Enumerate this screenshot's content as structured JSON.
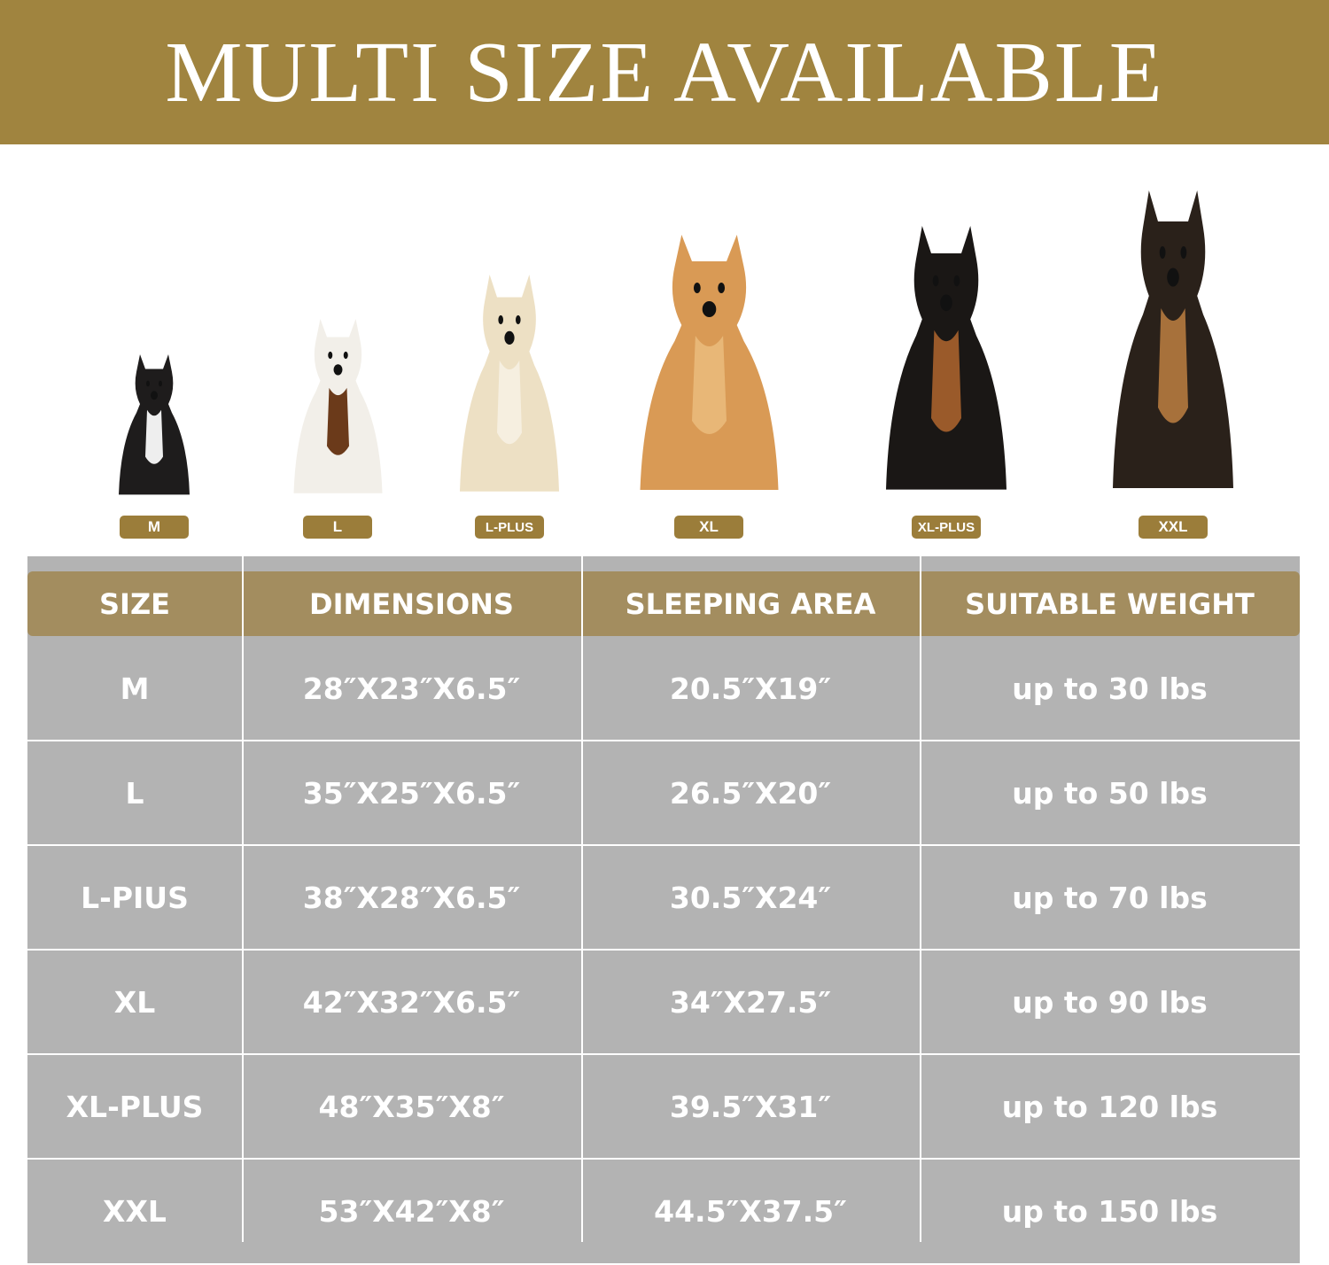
{
  "title": "MULTI SIZE AVAILABLE",
  "colors": {
    "banner": "#a0843f",
    "badge": "#9b7d3a",
    "header": "#a38d5f",
    "table_bg": "#b3b3b3"
  },
  "dogs": [
    {
      "label": "M",
      "breed_icon": "french-bulldog"
    },
    {
      "label": "L",
      "breed_icon": "beagle"
    },
    {
      "label": "L-PLUS",
      "breed_icon": "golden-retriever-cream"
    },
    {
      "label": "XL",
      "breed_icon": "golden-retriever"
    },
    {
      "label": "XL-PLUS",
      "breed_icon": "doberman"
    },
    {
      "label": "XXL",
      "breed_icon": "german-shepherd"
    }
  ],
  "table": {
    "headers": [
      "SIZE",
      "DIMENSIONS",
      "SLEEPING AREA",
      "SUITABLE WEIGHT"
    ],
    "rows": [
      [
        "M",
        "28″X23″X6.5″",
        "20.5″X19″",
        "up to 30 lbs"
      ],
      [
        "L",
        "35″X25″X6.5″",
        "26.5″X20″",
        "up to 50 lbs"
      ],
      [
        "L-PIUS",
        "38″X28″X6.5″",
        "30.5″X24″",
        "up to 70 lbs"
      ],
      [
        "XL",
        "42″X32″X6.5″",
        "34″X27.5″",
        "up to 90 lbs"
      ],
      [
        "XL-PLUS",
        "48″X35″X8″",
        "39.5″X31″",
        "up to 120 lbs"
      ],
      [
        "XXL",
        "53″X42″X8″",
        "44.5″X37.5″",
        "up to 150 lbs"
      ]
    ]
  }
}
